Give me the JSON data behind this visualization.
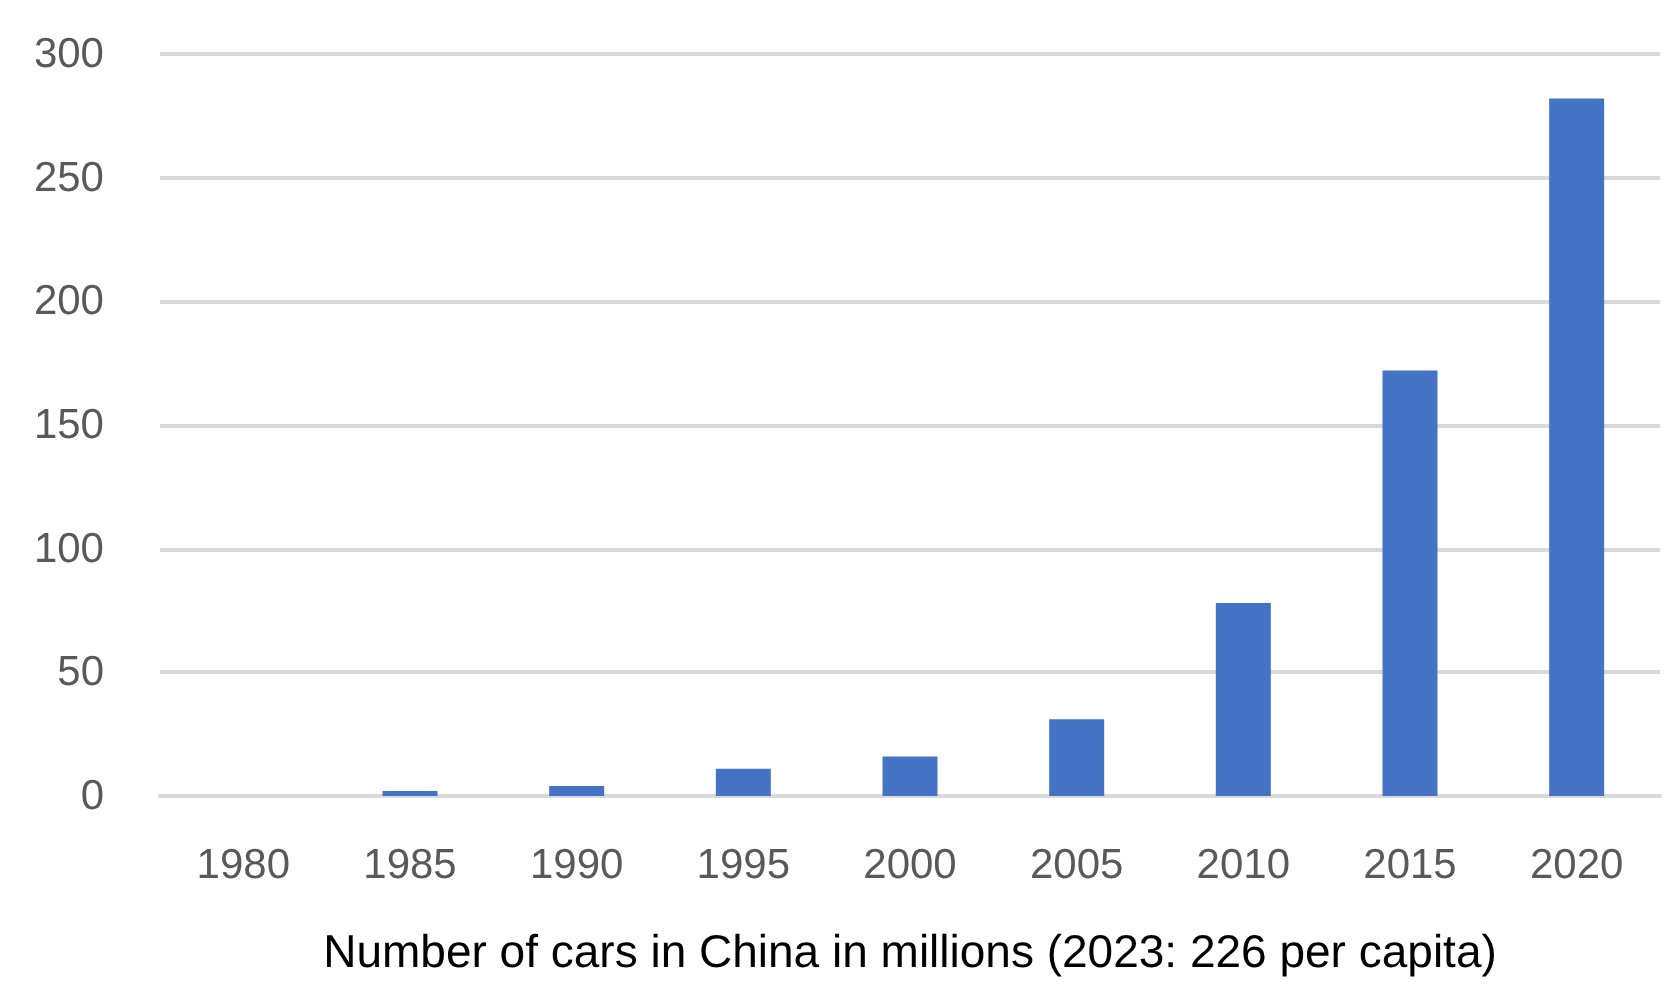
{
  "chart_data": {
    "type": "bar",
    "xlabel": "Number of cars in China in millions (2023: 226 per capita)",
    "categories": [
      "1980",
      "1985",
      "1990",
      "1995",
      "2000",
      "2005",
      "2010",
      "2015",
      "2020"
    ],
    "values": [
      0,
      2,
      4,
      11,
      16,
      31,
      78,
      172,
      282
    ],
    "color": "#4472c4",
    "ylim": [
      0,
      300
    ],
    "yticks": [
      0,
      50,
      100,
      150,
      200,
      250,
      300
    ],
    "grid": "y"
  }
}
